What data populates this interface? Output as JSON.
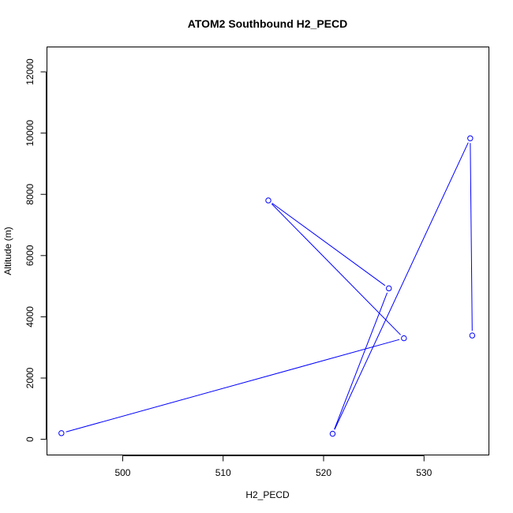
{
  "chart_data": {
    "type": "line",
    "title": "ATOM2 Southbound H2_PECD",
    "xlabel": "H2_PECD",
    "ylabel": "Altitude (m)",
    "xlim": [
      492.5,
      536.5
    ],
    "ylim": [
      -500,
      12800
    ],
    "x_ticks": [
      500,
      510,
      520,
      530
    ],
    "y_ticks": [
      0,
      2000,
      4000,
      6000,
      8000,
      10000,
      12000
    ],
    "grid": false,
    "legend": "none",
    "series_color": "#0000ff",
    "markers": "open-circle",
    "series": [
      {
        "points": [
          {
            "x": 493.9,
            "y": 200
          },
          {
            "x": 528.0,
            "y": 3300
          },
          {
            "x": 514.5,
            "y": 7800
          },
          {
            "x": 526.5,
            "y": 4930
          },
          {
            "x": 520.9,
            "y": 180
          },
          {
            "x": 534.6,
            "y": 9830
          },
          {
            "x": 534.8,
            "y": 3390
          }
        ]
      }
    ]
  }
}
